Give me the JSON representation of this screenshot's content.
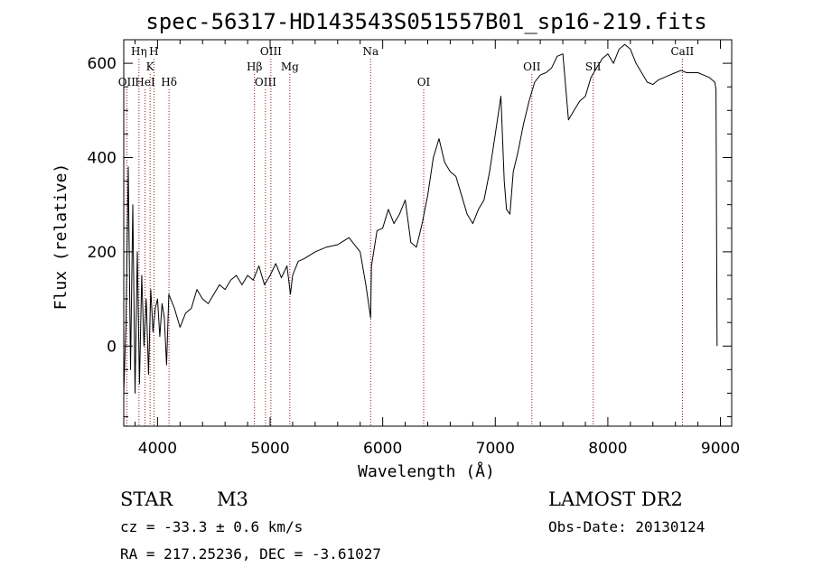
{
  "chart_data": {
    "type": "line",
    "title": "spec-56317-HD143543S051557B01_sp16-219.fits",
    "xlabel": "Wavelength (Å)",
    "ylabel": "Flux (relative)",
    "xlim": [
      3700,
      9100
    ],
    "ylim": [
      -170,
      650
    ],
    "xticks": [
      4000,
      5000,
      6000,
      7000,
      8000,
      9000
    ],
    "yticks": [
      0,
      200,
      400,
      600
    ],
    "grid": false,
    "series": [
      {
        "x": [
          3700,
          3720,
          3740,
          3760,
          3780,
          3800,
          3820,
          3840,
          3860,
          3880,
          3900,
          3920,
          3940,
          3960,
          3980,
          4000,
          4020,
          4040,
          4060,
          4080,
          4100,
          4150,
          4200,
          4250,
          4300,
          4350,
          4400,
          4450,
          4500,
          4550,
          4600,
          4650,
          4700,
          4750,
          4800,
          4850,
          4900,
          4950,
          5000,
          5050,
          5100,
          5150,
          5180,
          5200,
          5250,
          5300,
          5400,
          5500,
          5600,
          5700,
          5800,
          5850,
          5893,
          5900,
          5950,
          6000,
          6050,
          6100,
          6150,
          6200,
          6250,
          6300,
          6350,
          6400,
          6450,
          6500,
          6550,
          6600,
          6650,
          6700,
          6750,
          6800,
          6850,
          6900,
          6950,
          7000,
          7050,
          7080,
          7100,
          7130,
          7160,
          7200,
          7250,
          7300,
          7350,
          7400,
          7450,
          7500,
          7550,
          7600,
          7650,
          7700,
          7750,
          7800,
          7850,
          7900,
          7950,
          8000,
          8050,
          8100,
          8150,
          8200,
          8250,
          8300,
          8350,
          8400,
          8450,
          8500,
          8550,
          8600,
          8650,
          8700,
          8750,
          8800,
          8850,
          8900,
          8950,
          8960,
          8970
        ],
        "y": [
          -100,
          50,
          380,
          -50,
          300,
          -100,
          200,
          -80,
          150,
          0,
          100,
          -60,
          120,
          30,
          80,
          100,
          20,
          90,
          60,
          -40,
          110,
          80,
          40,
          70,
          80,
          120,
          100,
          90,
          110,
          130,
          120,
          140,
          150,
          130,
          150,
          140,
          170,
          130,
          150,
          175,
          145,
          170,
          110,
          150,
          180,
          185,
          200,
          210,
          215,
          230,
          200,
          130,
          60,
          170,
          245,
          250,
          290,
          260,
          280,
          310,
          220,
          210,
          260,
          320,
          400,
          440,
          390,
          370,
          360,
          320,
          280,
          260,
          290,
          310,
          370,
          450,
          530,
          350,
          290,
          280,
          370,
          410,
          470,
          520,
          560,
          575,
          580,
          590,
          615,
          620,
          480,
          500,
          520,
          530,
          570,
          590,
          610,
          620,
          600,
          630,
          640,
          630,
          600,
          580,
          560,
          555,
          565,
          570,
          575,
          580,
          585,
          580,
          580,
          580,
          575,
          570,
          560,
          545,
          0
        ]
      }
    ],
    "lines": [
      {
        "name": "OII",
        "x": 3727,
        "row": 3
      },
      {
        "name": "Hη",
        "x": 3835,
        "row": 1
      },
      {
        "name": "HeI",
        "x": 3889,
        "row": 3
      },
      {
        "name": "K",
        "x": 3934,
        "row": 2
      },
      {
        "name": "H",
        "x": 3968,
        "row": 1
      },
      {
        "name": "Hδ",
        "x": 4102,
        "row": 3
      },
      {
        "name": "Hβ",
        "x": 4861,
        "row": 2
      },
      {
        "name": "OIII",
        "x": 4959,
        "row": 3
      },
      {
        "name": "OIII",
        "x": 5007,
        "row": 1
      },
      {
        "name": "Mg",
        "x": 5175,
        "row": 2
      },
      {
        "name": "Na",
        "x": 5893,
        "row": 1
      },
      {
        "name": "OI",
        "x": 6364,
        "row": 3
      },
      {
        "name": "OII",
        "x": 7325,
        "row": 2
      },
      {
        "name": "SII",
        "x": 7870,
        "row": 2
      },
      {
        "name": "CaII",
        "x": 8662,
        "row": 1
      }
    ]
  },
  "info": {
    "class": "STAR",
    "subclass": "M3",
    "survey": "LAMOST DR2",
    "cz": "cz = -33.3 ± 0.6 km/s",
    "obs_date": "Obs-Date: 20130124",
    "coords": "RA = 217.25236, DEC =  -3.61027"
  },
  "colors": {
    "spectrum": "#000000",
    "line_markers": "#8b1a1a"
  }
}
